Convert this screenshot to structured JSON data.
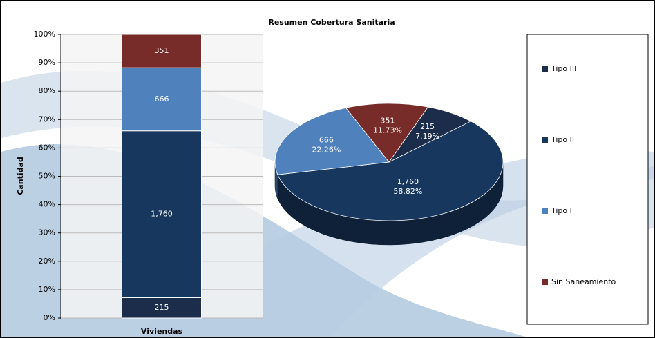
{
  "chart_data": [
    {
      "type": "bar",
      "title": "Resumen Cobertura Sanitaria",
      "categories": [
        "Viviendas"
      ],
      "y_label": "Cantidad",
      "stacked": "percent",
      "grid": true,
      "ylim": [
        0,
        100
      ],
      "yticks": [
        {
          "value": 0,
          "label": "0%"
        },
        {
          "value": 10,
          "label": "10%"
        },
        {
          "value": 20,
          "label": "20%"
        },
        {
          "value": 30,
          "label": "30%"
        },
        {
          "value": 40,
          "label": "40%"
        },
        {
          "value": 50,
          "label": "50%"
        },
        {
          "value": 60,
          "label": "60%"
        },
        {
          "value": 70,
          "label": "70%"
        },
        {
          "value": 80,
          "label": "80%"
        },
        {
          "value": 90,
          "label": "90%"
        },
        {
          "value": 100,
          "label": "100%"
        }
      ],
      "series": [
        {
          "name": "Tipo III",
          "color": "#1b2d4b",
          "values": [
            215
          ],
          "value_labels": [
            "215"
          ]
        },
        {
          "name": "Tipo II",
          "color": "#17375e",
          "values": [
            1760
          ],
          "value_labels": [
            "1,760"
          ]
        },
        {
          "name": "Tipo I",
          "color": "#4f81bd",
          "values": [
            666
          ],
          "value_labels": [
            "666"
          ]
        },
        {
          "name": "Sin Saneamiento",
          "color": "#772c2a",
          "values": [
            351
          ],
          "value_labels": [
            "351"
          ]
        }
      ]
    },
    {
      "type": "pie",
      "colors": [
        "#1b2d4b",
        "#17375e",
        "#4f81bd",
        "#772c2a"
      ],
      "values": [
        215,
        1760,
        666,
        351
      ],
      "value_labels": [
        "215",
        "1,760",
        "666",
        "351"
      ],
      "percentages": [
        7.19,
        58.82,
        22.26,
        11.73
      ],
      "percentage_labels": [
        "7.19%",
        "58.82%",
        "22.26%",
        "11.73%"
      ]
    }
  ]
}
